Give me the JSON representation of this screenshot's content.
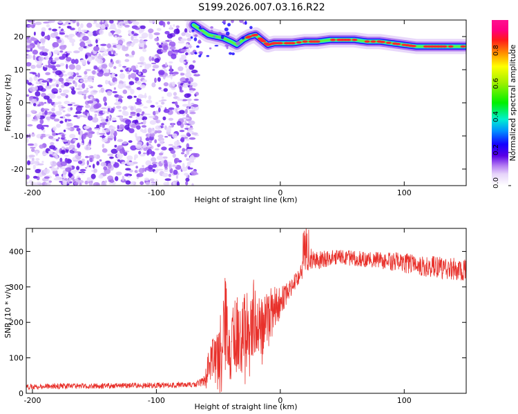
{
  "title": "S199.2026.007.03.16.R22",
  "colors": {
    "snr_line": "#e8302a",
    "speckle": "#7a33ee",
    "spectral_track": "#1de9c8",
    "track_peak": "#ff2a2a"
  },
  "chart_data": [
    {
      "type": "heatmap",
      "name": "spectrogram",
      "xlabel": "Height of straight line (km)",
      "ylabel": "Frequency (Hz)",
      "xlim": [
        -205,
        150
      ],
      "ylim": [
        -25,
        25
      ],
      "x_ticks": [
        -200,
        -100,
        0,
        100
      ],
      "y_ticks": [
        -20,
        -10,
        0,
        10,
        20
      ],
      "noise_region_x": [
        -205,
        -67
      ],
      "signal_track": {
        "x": [
          -70,
          -64,
          -58,
          -52,
          -46,
          -40,
          -35,
          -30,
          -25,
          -20,
          -15,
          -10,
          -5,
          0,
          10,
          20,
          30,
          40,
          50,
          60,
          70,
          80,
          90,
          100,
          110,
          120,
          130,
          140,
          150
        ],
        "freq": [
          23.5,
          22,
          20.5,
          20,
          19.5,
          18.5,
          17.5,
          19,
          20,
          20.5,
          19,
          17.5,
          18,
          18,
          18,
          18.5,
          18.5,
          19,
          19,
          19,
          18.5,
          18.5,
          18,
          17.5,
          17,
          17,
          17,
          17,
          17
        ]
      },
      "colorbar": {
        "label": "Normalized spectral amplitude",
        "range": [
          0.0,
          1.0
        ],
        "ticks": [
          "0.0",
          "0.2",
          "0.4",
          "0.6",
          "0.8"
        ]
      }
    },
    {
      "type": "line",
      "name": "snr",
      "xlabel": "Height of straight line (km)",
      "ylabel": "SNR (10 * v/v)",
      "xlim": [
        -205,
        150
      ],
      "ylim": [
        0,
        465
      ],
      "x_ticks": [
        -200,
        -100,
        0,
        100
      ],
      "y_ticks": [
        0,
        100,
        200,
        300,
        400
      ],
      "series": [
        {
          "name": "SNR",
          "x": [
            -205,
            -180,
            -150,
            -120,
            -90,
            -70,
            -62,
            -58,
            -55,
            -50,
            -47,
            -44,
            -40,
            -36,
            -32,
            -28,
            -24,
            -20,
            -16,
            -12,
            -8,
            -4,
            0,
            5,
            10,
            15,
            18,
            20,
            22,
            25,
            30,
            40,
            50,
            60,
            70,
            80,
            90,
            100,
            110,
            120,
            130,
            140,
            150
          ],
          "mean": [
            18,
            20,
            21,
            22,
            23,
            25,
            32,
            60,
            90,
            110,
            140,
            180,
            130,
            170,
            150,
            185,
            170,
            200,
            190,
            215,
            230,
            245,
            250,
            280,
            305,
            330,
            350,
            370,
            375,
            380,
            375,
            382,
            385,
            380,
            378,
            375,
            372,
            368,
            362,
            358,
            352,
            350,
            348
          ],
          "noise": [
            8,
            8,
            8,
            8,
            8,
            8,
            12,
            40,
            60,
            80,
            120,
            150,
            100,
            110,
            100,
            110,
            100,
            95,
            90,
            85,
            70,
            60,
            50,
            30,
            25,
            22,
            25,
            30,
            30,
            28,
            26,
            24,
            22,
            22,
            22,
            24,
            26,
            28,
            30,
            30,
            32,
            32,
            30
          ]
        }
      ]
    }
  ]
}
